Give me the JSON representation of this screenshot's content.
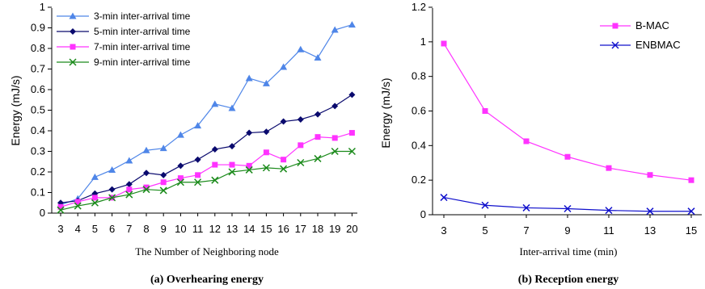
{
  "chart_data": [
    {
      "type": "line",
      "caption": "(a) Overhearing energy",
      "xlabel": "The Number of Neighboring node",
      "ylabel": "Energy (mJ/s)",
      "xlim": [
        3,
        20
      ],
      "ylim": [
        0,
        1
      ],
      "x": [
        3,
        4,
        5,
        6,
        7,
        8,
        9,
        10,
        11,
        12,
        13,
        14,
        15,
        16,
        17,
        18,
        19,
        20
      ],
      "xticks": [
        "3",
        "4",
        "5",
        "6",
        "7",
        "8",
        "9",
        "10",
        "11",
        "12",
        "13",
        "14",
        "15",
        "16",
        "17",
        "18",
        "19",
        "20"
      ],
      "yticks": [
        "0",
        "0.1",
        "0.2",
        "0.3",
        "0.4",
        "0.5",
        "0.6",
        "0.7",
        "0.8",
        "0.9",
        "1"
      ],
      "legend_position": "top-left",
      "series": [
        {
          "name": "3-min inter-arrival time",
          "color": "#4f86e8",
          "marker": "triangle",
          "values": [
            0.04,
            0.07,
            0.175,
            0.21,
            0.255,
            0.305,
            0.315,
            0.38,
            0.425,
            0.53,
            0.51,
            0.655,
            0.63,
            0.71,
            0.795,
            0.755,
            0.89,
            0.915
          ]
        },
        {
          "name": "5-min inter-arrival time",
          "color": "#0a0a6e",
          "marker": "diamond",
          "values": [
            0.05,
            0.06,
            0.095,
            0.115,
            0.14,
            0.195,
            0.185,
            0.23,
            0.26,
            0.31,
            0.325,
            0.39,
            0.395,
            0.445,
            0.455,
            0.48,
            0.52,
            0.575
          ]
        },
        {
          "name": "7-min inter-arrival time",
          "color": "#ff33ff",
          "marker": "square",
          "values": [
            0.03,
            0.055,
            0.075,
            0.075,
            0.115,
            0.125,
            0.15,
            0.17,
            0.185,
            0.235,
            0.235,
            0.23,
            0.295,
            0.26,
            0.33,
            0.37,
            0.365,
            0.39
          ]
        },
        {
          "name": "9-min inter-arrival time",
          "color": "#1a8a1a",
          "marker": "x",
          "values": [
            0.015,
            0.035,
            0.05,
            0.075,
            0.09,
            0.115,
            0.11,
            0.15,
            0.15,
            0.16,
            0.2,
            0.21,
            0.22,
            0.215,
            0.245,
            0.265,
            0.3,
            0.3
          ]
        }
      ]
    },
    {
      "type": "line",
      "caption": "(b) Reception energy",
      "xlabel": "Inter-arrival time (min)",
      "ylabel": "Energy (mJ/s)",
      "xlim": [
        3,
        15
      ],
      "ylim": [
        0,
        1.2
      ],
      "x": [
        3,
        5,
        7,
        9,
        11,
        13,
        15
      ],
      "xticks": [
        "3",
        "5",
        "7",
        "9",
        "11",
        "13",
        "15"
      ],
      "yticks": [
        "0",
        "0.2",
        "0.4",
        "0.6",
        "0.8",
        "1",
        "1.2"
      ],
      "legend_position": "top-right",
      "series": [
        {
          "name": "B-MAC",
          "color": "#ff33ff",
          "marker": "square",
          "values": [
            0.99,
            0.6,
            0.425,
            0.335,
            0.27,
            0.23,
            0.2
          ]
        },
        {
          "name": "ENBMAC",
          "color": "#1010cc",
          "marker": "x",
          "values": [
            0.1,
            0.055,
            0.04,
            0.035,
            0.025,
            0.02,
            0.02
          ]
        }
      ]
    }
  ]
}
